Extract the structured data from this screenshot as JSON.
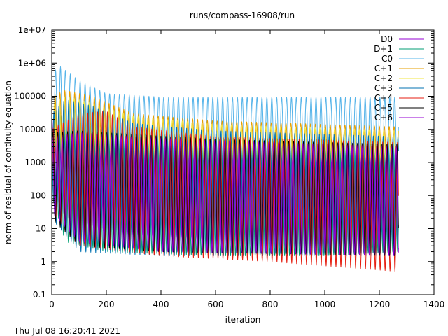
{
  "chart_data": {
    "type": "line",
    "title": "runs/compass-16908/run",
    "xlabel": "iteration",
    "ylabel": "norm of residual of continuity equation",
    "xlim": [
      0,
      1400
    ],
    "ylim": [
      0.1,
      10000000
    ],
    "yscale": "log",
    "grid": false,
    "legend_position": "top-right",
    "xticks": [
      "0",
      "200",
      "400",
      "600",
      "800",
      "1000",
      "1200",
      "1400"
    ],
    "yticks": [
      "0.1",
      "1",
      "10",
      "100",
      "1000",
      "10000",
      "100000",
      "1e+06",
      "1e+07"
    ],
    "series": [
      {
        "name": "D0",
        "color": "#9400d3",
        "upper": [
          [
            0,
            30000
          ],
          [
            50,
            10000
          ],
          [
            200,
            8000
          ],
          [
            600,
            5500
          ],
          [
            1000,
            4800
          ],
          [
            1270,
            3000
          ]
        ],
        "lower": [
          [
            0,
            200
          ],
          [
            50,
            20
          ],
          [
            200,
            8
          ],
          [
            600,
            4
          ],
          [
            1000,
            2
          ],
          [
            1270,
            2
          ]
        ]
      },
      {
        "name": "D+1",
        "color": "#009e73",
        "upper": [
          [
            0,
            50000
          ],
          [
            50,
            20000
          ],
          [
            200,
            9000
          ],
          [
            600,
            6000
          ],
          [
            1000,
            5000
          ],
          [
            1270,
            3000
          ]
        ],
        "lower": [
          [
            0,
            100
          ],
          [
            50,
            4
          ],
          [
            200,
            2
          ],
          [
            600,
            1.5
          ],
          [
            1000,
            1.5
          ],
          [
            1270,
            2
          ]
        ]
      },
      {
        "name": "C0",
        "color": "#56b4e9",
        "upper": [
          [
            0,
            500000
          ],
          [
            30,
            800000
          ],
          [
            100,
            300000
          ],
          [
            200,
            120000
          ],
          [
            400,
            95000
          ],
          [
            1270,
            95000
          ]
        ],
        "lower": [
          [
            0,
            1000
          ],
          [
            100,
            1500
          ],
          [
            400,
            1500
          ],
          [
            1270,
            600
          ]
        ]
      },
      {
        "name": "C+1",
        "color": "#e69f00",
        "upper": [
          [
            0,
            100000
          ],
          [
            50,
            150000
          ],
          [
            150,
            100000
          ],
          [
            300,
            30000
          ],
          [
            600,
            18000
          ],
          [
            1270,
            12000
          ]
        ],
        "lower": [
          [
            0,
            1000
          ],
          [
            100,
            1500
          ],
          [
            400,
            1200
          ],
          [
            1270,
            1000
          ]
        ]
      },
      {
        "name": "C+2",
        "color": "#f0e442",
        "upper": [
          [
            0,
            60000
          ],
          [
            50,
            100000
          ],
          [
            150,
            60000
          ],
          [
            300,
            25000
          ],
          [
            600,
            14000
          ],
          [
            1270,
            9000
          ]
        ],
        "lower": [
          [
            0,
            800
          ],
          [
            100,
            1000
          ],
          [
            400,
            1000
          ],
          [
            1270,
            800
          ]
        ]
      },
      {
        "name": "C+3",
        "color": "#0072b2",
        "upper": [
          [
            0,
            30000
          ],
          [
            50,
            80000
          ],
          [
            150,
            50000
          ],
          [
            300,
            15000
          ],
          [
            600,
            9000
          ],
          [
            1270,
            6000
          ]
        ],
        "lower": [
          [
            0,
            20
          ],
          [
            100,
            2
          ],
          [
            400,
            1.5
          ],
          [
            1270,
            1.5
          ]
        ]
      },
      {
        "name": "C+4",
        "color": "#e51e10",
        "upper": [
          [
            0,
            10000
          ],
          [
            100,
            30000
          ],
          [
            200,
            35000
          ],
          [
            300,
            12000
          ],
          [
            600,
            6000
          ],
          [
            1270,
            4000
          ]
        ],
        "lower": [
          [
            0,
            30
          ],
          [
            100,
            3
          ],
          [
            400,
            1.5
          ],
          [
            800,
            1
          ],
          [
            1270,
            0.5
          ]
        ]
      },
      {
        "name": "C+5",
        "color": "#000000",
        "upper": [
          [
            0,
            8000
          ],
          [
            100,
            9000
          ],
          [
            300,
            7000
          ],
          [
            600,
            5000
          ],
          [
            1270,
            3500
          ]
        ],
        "lower": [
          [
            0,
            20
          ],
          [
            100,
            3
          ],
          [
            400,
            2
          ],
          [
            1270,
            1.5
          ]
        ]
      },
      {
        "name": "C+6",
        "color": "#9400d3",
        "upper": [
          [
            0,
            6000
          ],
          [
            100,
            8000
          ],
          [
            300,
            6000
          ],
          [
            600,
            4500
          ],
          [
            1270,
            3000
          ]
        ],
        "lower": [
          [
            0,
            30
          ],
          [
            100,
            4
          ],
          [
            400,
            2
          ],
          [
            1270,
            1.5
          ]
        ]
      }
    ],
    "oscillation_period": 18,
    "x_end": 1270
  },
  "footer": {
    "timestamp": "Thu Jul 08 16:20:41 2021"
  }
}
